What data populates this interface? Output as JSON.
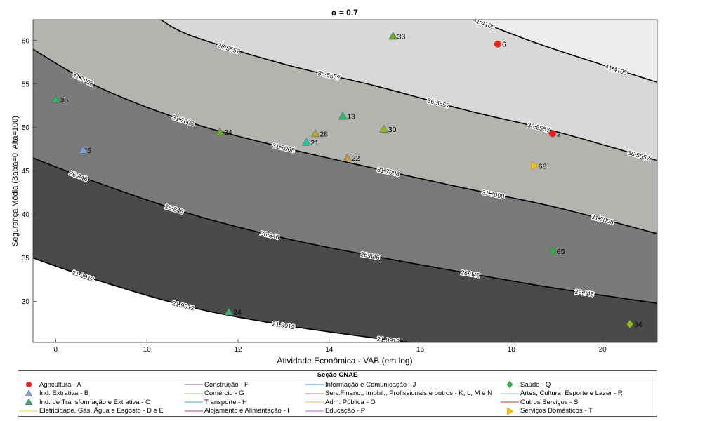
{
  "chart_data": {
    "type": "scatter",
    "title": "α = 0.7",
    "xlabel": "Atividade Econômica - VAB (em log)",
    "ylabel": "Segurança Média (Baixa=0, Alta=100)",
    "xlim": [
      7.5,
      21.2
    ],
    "ylim": [
      25.3,
      62.4
    ],
    "xticks": [
      8,
      10,
      12,
      14,
      16,
      18,
      20
    ],
    "yticks": [
      30,
      35,
      40,
      45,
      50,
      55,
      60
    ],
    "contour_levels": [
      "21.9912",
      "26.846",
      "31.7008",
      "36.5557",
      "41.4105"
    ],
    "contour_curves": [
      {
        "level": "21.9912",
        "points": [
          [
            7.5,
            35.0
          ],
          [
            9,
            32.3
          ],
          [
            11,
            29.3
          ],
          [
            13,
            27.3
          ],
          [
            15,
            25.8
          ],
          [
            15.8,
            25.3
          ]
        ]
      },
      {
        "level": "26.846",
        "points": [
          [
            7.5,
            46.5
          ],
          [
            9,
            43.5
          ],
          [
            11,
            40.0
          ],
          [
            13,
            37.3
          ],
          [
            15,
            35.2
          ],
          [
            17,
            33.3
          ],
          [
            19,
            31.5
          ],
          [
            21.2,
            29.8
          ]
        ]
      },
      {
        "level": "31.7008",
        "points": [
          [
            7.5,
            59.0
          ],
          [
            9,
            54.5
          ],
          [
            11,
            50.5
          ],
          [
            13,
            47.7
          ],
          [
            15,
            45.3
          ],
          [
            17,
            43.0
          ],
          [
            19,
            40.8
          ],
          [
            21.2,
            37.8
          ]
        ]
      },
      {
        "level": "36.5557",
        "points": [
          [
            10.3,
            62.4
          ],
          [
            11,
            60.5
          ],
          [
            13,
            57.3
          ],
          [
            15,
            54.8
          ],
          [
            17,
            52.0
          ],
          [
            19,
            49.5
          ],
          [
            21.2,
            46.2
          ]
        ]
      },
      {
        "level": "41.4105",
        "points": [
          [
            17.2,
            62.4
          ],
          [
            18.5,
            59.8
          ],
          [
            20,
            57.2
          ],
          [
            21.2,
            55.2
          ]
        ]
      }
    ],
    "contour_label_positions": [
      {
        "level": "21.9912",
        "x": [
          8.6,
          10.8,
          13.0,
          15.3
        ]
      },
      {
        "level": "26.846",
        "x": [
          8.5,
          10.6,
          12.7,
          14.9,
          17.1,
          19.6
        ]
      },
      {
        "level": "31.7008",
        "x": [
          8.6,
          10.8,
          13.0,
          15.3,
          17.6,
          20.0
        ]
      },
      {
        "level": "36.5557",
        "x": [
          11.8,
          14.0,
          16.4,
          18.6,
          20.8
        ]
      },
      {
        "level": "41.4105",
        "x": [
          17.4,
          20.3
        ]
      }
    ],
    "fill_colors": [
      "#ffffff",
      "#4a4a4a",
      "#7a7a7a",
      "#b3b4af",
      "#d8d8d8",
      "#ececec"
    ],
    "points": [
      {
        "label": "33",
        "x": 15.4,
        "y": 60.5,
        "marker": "triangle",
        "color": "#6aa436"
      },
      {
        "label": "6",
        "x": 17.7,
        "y": 59.6,
        "marker": "circle",
        "color": "#e8221c"
      },
      {
        "label": "35",
        "x": 8.0,
        "y": 53.2,
        "marker": "triangle",
        "color": "#2fb36c"
      },
      {
        "label": "13",
        "x": 14.3,
        "y": 51.3,
        "marker": "triangle",
        "color": "#2fb36c"
      },
      {
        "label": "30",
        "x": 15.2,
        "y": 49.8,
        "marker": "triangle",
        "color": "#8fb81e"
      },
      {
        "label": "34",
        "x": 11.6,
        "y": 49.5,
        "marker": "triangle",
        "color": "#6aa436"
      },
      {
        "label": "2",
        "x": 18.9,
        "y": 49.3,
        "marker": "circle",
        "color": "#e8221c"
      },
      {
        "label": "28",
        "x": 13.7,
        "y": 49.3,
        "marker": "triangle",
        "color": "#b7a928"
      },
      {
        "label": "21",
        "x": 13.5,
        "y": 48.3,
        "marker": "triangle",
        "color": "#26c4a4"
      },
      {
        "label": "5",
        "x": 8.6,
        "y": 47.4,
        "marker": "triangle",
        "color": "#7d9fe8"
      },
      {
        "label": "22",
        "x": 14.4,
        "y": 46.5,
        "marker": "triangle",
        "color": "#c99a46"
      },
      {
        "label": "68",
        "x": 18.5,
        "y": 45.6,
        "marker": "right-triangle",
        "color": "#f5c016"
      },
      {
        "label": "65",
        "x": 18.9,
        "y": 35.8,
        "marker": "diamond",
        "color": "#2db34a"
      },
      {
        "label": "24",
        "x": 11.8,
        "y": 28.8,
        "marker": "triangle",
        "color": "#3bb573"
      },
      {
        "label": "64",
        "x": 20.6,
        "y": 27.4,
        "marker": "diamond",
        "color": "#8fb81e"
      }
    ]
  },
  "legend": {
    "title": "Seção CNAE",
    "columns": [
      [
        {
          "label": "Agricultura - A",
          "symbol": "circle",
          "color": "#e8221c"
        },
        {
          "label": "Ind. Extrativa - B",
          "symbol": "triangle",
          "color": "#7d9fe8"
        },
        {
          "label": "Ind. de Transformação e Extrativa - C",
          "symbol": "triangle",
          "color": "#2fb36c"
        },
        {
          "label": "Eletricidade, Gás, Água e Esgosto - D e E",
          "symbol": "line",
          "color": "#f2c85b"
        }
      ],
      [
        {
          "label": "Construção - F",
          "symbol": "line",
          "color": "#8a5a8c"
        },
        {
          "label": "Comércio - G",
          "symbol": "line",
          "color": "#9ccc65"
        },
        {
          "label": "Transporte - H",
          "symbol": "line",
          "color": "#3ab0c9"
        },
        {
          "label": "Alojamento e Alimentação - I",
          "symbol": "line",
          "color": "#a84a7a"
        }
      ],
      [
        {
          "label": "Informação e Comunicação - J",
          "symbol": "line",
          "color": "#3b8fd6"
        },
        {
          "label": "Serv.Financ., Imobil., Profissionais e outros - K, L, M e N",
          "symbol": "line",
          "color": "#e07a5f"
        },
        {
          "label": "Adm. Pública - O",
          "symbol": "line",
          "color": "#f0b070"
        },
        {
          "label": "Educação - P",
          "symbol": "line",
          "color": "#a86ad0"
        }
      ],
      [
        {
          "label": "Saúde - Q",
          "symbol": "diamond",
          "color": "#2db34a"
        },
        {
          "label": "Artes, Cultura, Esporte e Lazer - R",
          "symbol": "line",
          "color": "#7fd6e8"
        },
        {
          "label": "Outros Serviços - S",
          "symbol": "line",
          "color": "#c0392b"
        },
        {
          "label": "Serviços Domésticos - T",
          "symbol": "right-triangle",
          "color": "#f5c016"
        }
      ]
    ]
  }
}
